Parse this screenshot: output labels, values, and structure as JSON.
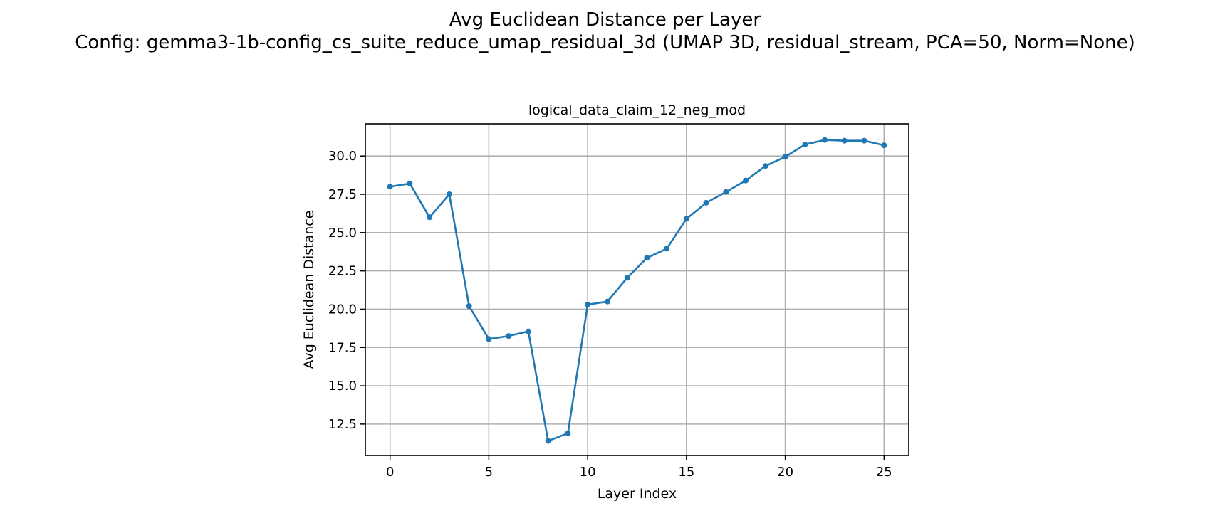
{
  "figure": {
    "suptitle_line1": "Avg Euclidean Distance per Layer",
    "suptitle_line2": "Config: gemma3-1b-config_cs_suite_reduce_umap_residual_3d (UMAP 3D, residual_stream, PCA=50, Norm=None)"
  },
  "chart_data": {
    "type": "line",
    "title": "logical_data_claim_12_neg_mod",
    "xlabel": "Layer Index",
    "ylabel": "Avg Euclidean Distance",
    "x": [
      0,
      1,
      2,
      3,
      4,
      5,
      6,
      7,
      8,
      9,
      10,
      11,
      12,
      13,
      14,
      15,
      16,
      17,
      18,
      19,
      20,
      21,
      22,
      23,
      24,
      25
    ],
    "series": [
      {
        "values": [
          28.0,
          28.2,
          26.0,
          27.5,
          20.2,
          18.05,
          18.25,
          18.55,
          11.4,
          11.9,
          20.3,
          20.5,
          22.05,
          23.35,
          23.95,
          25.9,
          26.95,
          27.65,
          28.4,
          29.35,
          29.95,
          30.75,
          31.05,
          31.0,
          31.0,
          30.7
        ],
        "color": "#1f77b4",
        "marker": "circle"
      }
    ],
    "xlim": [
      -1.25,
      26.25
    ],
    "ylim": [
      10.45,
      32.1
    ],
    "xticks": [
      0,
      5,
      10,
      15,
      20,
      25
    ],
    "xtick_labels": [
      "0",
      "5",
      "10",
      "15",
      "20",
      "25"
    ],
    "yticks": [
      12.5,
      15.0,
      17.5,
      20.0,
      22.5,
      25.0,
      27.5,
      30.0
    ],
    "ytick_labels": [
      "12.5",
      "15.0",
      "17.5",
      "20.0",
      "22.5",
      "25.0",
      "27.5",
      "30.0"
    ],
    "grid": true,
    "legend": "none"
  }
}
